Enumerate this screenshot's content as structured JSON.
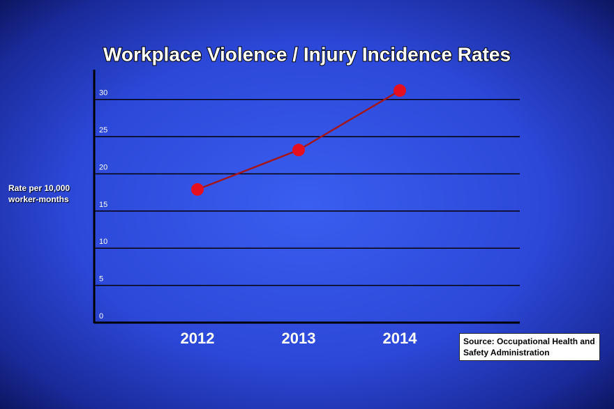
{
  "chart_data": {
    "type": "line",
    "title": "Workplace Violence / Injury Incidence Rates",
    "y_label": "Rate per 10,000 worker-months",
    "source": "Source: Occupational Health and Safety Administration",
    "categories": [
      "2012",
      "2013",
      "2014"
    ],
    "values": [
      17.9,
      23.2,
      31.2
    ],
    "color": "#a3161c",
    "marker_color": "#e50f1d",
    "ylim": [
      0,
      34
    ],
    "yticks": [
      0,
      5,
      10,
      15,
      20,
      25,
      30
    ],
    "grid": true
  }
}
